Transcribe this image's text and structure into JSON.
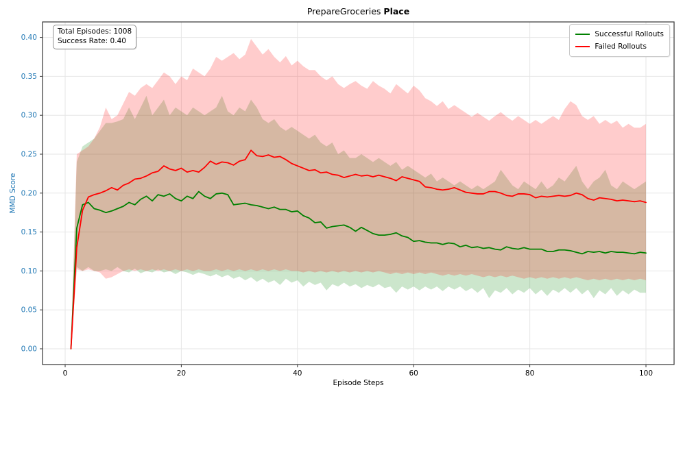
{
  "figure": {
    "title_regular": "PrepareGroceries",
    "title_bold": "Place",
    "xlabel": "Episode Steps",
    "ylabel": "MMD Score"
  },
  "stats_box": {
    "line1": "Total Episodes: 1008",
    "line2": "Success Rate: 0.40"
  },
  "colors": {
    "successful_line": "#008000",
    "failed_line": "#ff0000",
    "successful_band": "rgba(0,128,0,0.2)",
    "failed_band": "rgba(255,0,0,0.2)",
    "ytick_text": "#1f77b4",
    "xtick_text": "#000000",
    "grid": "#e6e6e6",
    "spine": "#333333"
  },
  "chart_data": {
    "type": "line",
    "title": "PrepareGroceries Place",
    "xlabel": "Episode Steps",
    "ylabel": "MMD Score",
    "grid": true,
    "legend_position": "upper right",
    "annotation": "Total Episodes: 1008\nSuccess Rate: 0.40",
    "xlim": [
      -4,
      105
    ],
    "ylim": [
      -0.022,
      0.42
    ],
    "xticks": [
      0,
      20,
      40,
      60,
      80,
      100
    ],
    "xtick_labels": [
      "0",
      "20",
      "40",
      "60",
      "80",
      "100"
    ],
    "yticks": [
      0.0,
      0.05,
      0.1,
      0.15,
      0.2,
      0.25,
      0.3,
      0.35,
      0.4
    ],
    "ytick_labels": [
      "0.00",
      "0.05",
      "0.10",
      "0.15",
      "0.20",
      "0.25",
      "0.30",
      "0.35",
      "0.40"
    ],
    "x": [
      1,
      2,
      3,
      4,
      5,
      6,
      7,
      8,
      9,
      10,
      11,
      12,
      13,
      14,
      15,
      16,
      17,
      18,
      19,
      20,
      21,
      22,
      23,
      24,
      25,
      26,
      27,
      28,
      29,
      30,
      31,
      32,
      33,
      34,
      35,
      36,
      37,
      38,
      39,
      40,
      41,
      42,
      43,
      44,
      45,
      46,
      47,
      48,
      49,
      50,
      51,
      52,
      53,
      54,
      55,
      56,
      57,
      58,
      59,
      60,
      61,
      62,
      63,
      64,
      65,
      66,
      67,
      68,
      69,
      70,
      71,
      72,
      73,
      74,
      75,
      76,
      77,
      78,
      79,
      80,
      81,
      82,
      83,
      84,
      85,
      86,
      87,
      88,
      89,
      90,
      91,
      92,
      93,
      94,
      95,
      96,
      97,
      98,
      99,
      100
    ],
    "series": [
      {
        "name": "Successful Rollouts",
        "color": "#008000",
        "band_color": "rgba(0,128,0,0.2)",
        "values": [
          0.0,
          0.155,
          0.185,
          0.188,
          0.18,
          0.178,
          0.175,
          0.177,
          0.18,
          0.183,
          0.188,
          0.185,
          0.192,
          0.196,
          0.19,
          0.198,
          0.196,
          0.199,
          0.193,
          0.19,
          0.196,
          0.193,
          0.202,
          0.196,
          0.193,
          0.199,
          0.2,
          0.198,
          0.185,
          0.186,
          0.187,
          0.185,
          0.184,
          0.182,
          0.18,
          0.182,
          0.179,
          0.179,
          0.176,
          0.177,
          0.171,
          0.168,
          0.162,
          0.163,
          0.155,
          0.157,
          0.158,
          0.159,
          0.156,
          0.151,
          0.156,
          0.152,
          0.148,
          0.146,
          0.146,
          0.147,
          0.149,
          0.145,
          0.143,
          0.138,
          0.139,
          0.137,
          0.136,
          0.136,
          0.134,
          0.136,
          0.135,
          0.131,
          0.133,
          0.13,
          0.131,
          0.129,
          0.13,
          0.128,
          0.127,
          0.131,
          0.129,
          0.128,
          0.13,
          0.128,
          0.128,
          0.128,
          0.125,
          0.125,
          0.127,
          0.127,
          0.126,
          0.124,
          0.122,
          0.125,
          0.124,
          0.125,
          0.123,
          0.125,
          0.124,
          0.124,
          0.123,
          0.122,
          0.124,
          0.123
        ],
        "band_upper": [
          0.0,
          0.24,
          0.26,
          0.265,
          0.27,
          0.28,
          0.29,
          0.29,
          0.292,
          0.295,
          0.31,
          0.295,
          0.31,
          0.325,
          0.3,
          0.31,
          0.32,
          0.3,
          0.31,
          0.305,
          0.3,
          0.31,
          0.305,
          0.3,
          0.305,
          0.31,
          0.325,
          0.305,
          0.3,
          0.31,
          0.305,
          0.32,
          0.31,
          0.295,
          0.29,
          0.295,
          0.285,
          0.28,
          0.285,
          0.28,
          0.275,
          0.27,
          0.275,
          0.265,
          0.26,
          0.265,
          0.25,
          0.255,
          0.245,
          0.245,
          0.25,
          0.245,
          0.24,
          0.245,
          0.24,
          0.235,
          0.24,
          0.23,
          0.235,
          0.23,
          0.225,
          0.22,
          0.225,
          0.215,
          0.22,
          0.215,
          0.21,
          0.215,
          0.21,
          0.205,
          0.21,
          0.205,
          0.21,
          0.215,
          0.23,
          0.22,
          0.21,
          0.205,
          0.215,
          0.21,
          0.205,
          0.215,
          0.205,
          0.21,
          0.22,
          0.215,
          0.225,
          0.235,
          0.215,
          0.205,
          0.215,
          0.22,
          0.23,
          0.21,
          0.205,
          0.215,
          0.21,
          0.205,
          0.21,
          0.215
        ],
        "band_lower": [
          0.0,
          0.105,
          0.1,
          0.105,
          0.1,
          0.1,
          0.102,
          0.1,
          0.105,
          0.1,
          0.098,
          0.103,
          0.097,
          0.1,
          0.098,
          0.102,
          0.098,
          0.1,
          0.096,
          0.1,
          0.098,
          0.095,
          0.098,
          0.096,
          0.093,
          0.096,
          0.092,
          0.095,
          0.09,
          0.093,
          0.088,
          0.092,
          0.086,
          0.09,
          0.085,
          0.088,
          0.082,
          0.09,
          0.085,
          0.088,
          0.08,
          0.086,
          0.082,
          0.085,
          0.075,
          0.083,
          0.08,
          0.085,
          0.08,
          0.083,
          0.078,
          0.082,
          0.079,
          0.083,
          0.078,
          0.08,
          0.072,
          0.08,
          0.076,
          0.08,
          0.075,
          0.08,
          0.076,
          0.08,
          0.074,
          0.08,
          0.076,
          0.08,
          0.074,
          0.078,
          0.072,
          0.078,
          0.065,
          0.075,
          0.072,
          0.078,
          0.07,
          0.076,
          0.072,
          0.078,
          0.07,
          0.076,
          0.068,
          0.076,
          0.072,
          0.078,
          0.072,
          0.078,
          0.07,
          0.076,
          0.065,
          0.075,
          0.07,
          0.078,
          0.068,
          0.075,
          0.07,
          0.076,
          0.072,
          0.072
        ]
      },
      {
        "name": "Failed Rollouts",
        "color": "#ff0000",
        "band_color": "rgba(255,0,0,0.2)",
        "values": [
          0.0,
          0.13,
          0.178,
          0.195,
          0.198,
          0.2,
          0.203,
          0.207,
          0.204,
          0.21,
          0.213,
          0.218,
          0.219,
          0.222,
          0.226,
          0.228,
          0.235,
          0.231,
          0.229,
          0.232,
          0.227,
          0.229,
          0.227,
          0.233,
          0.241,
          0.237,
          0.24,
          0.239,
          0.236,
          0.241,
          0.243,
          0.255,
          0.248,
          0.247,
          0.249,
          0.246,
          0.247,
          0.243,
          0.238,
          0.235,
          0.232,
          0.229,
          0.23,
          0.226,
          0.227,
          0.224,
          0.223,
          0.22,
          0.222,
          0.224,
          0.222,
          0.223,
          0.221,
          0.223,
          0.221,
          0.219,
          0.216,
          0.221,
          0.219,
          0.217,
          0.215,
          0.208,
          0.207,
          0.205,
          0.204,
          0.205,
          0.207,
          0.204,
          0.201,
          0.2,
          0.199,
          0.199,
          0.202,
          0.202,
          0.2,
          0.197,
          0.196,
          0.199,
          0.199,
          0.198,
          0.194,
          0.196,
          0.195,
          0.196,
          0.197,
          0.196,
          0.197,
          0.2,
          0.198,
          0.193,
          0.191,
          0.194,
          0.193,
          0.192,
          0.19,
          0.191,
          0.19,
          0.189,
          0.19,
          0.188
        ],
        "band_upper": [
          0.0,
          0.25,
          0.255,
          0.26,
          0.27,
          0.285,
          0.31,
          0.295,
          0.3,
          0.315,
          0.33,
          0.325,
          0.335,
          0.34,
          0.335,
          0.345,
          0.355,
          0.35,
          0.34,
          0.35,
          0.345,
          0.36,
          0.355,
          0.35,
          0.36,
          0.375,
          0.37,
          0.375,
          0.38,
          0.372,
          0.378,
          0.398,
          0.388,
          0.378,
          0.385,
          0.375,
          0.368,
          0.376,
          0.364,
          0.37,
          0.363,
          0.358,
          0.358,
          0.35,
          0.345,
          0.35,
          0.34,
          0.335,
          0.34,
          0.344,
          0.338,
          0.334,
          0.344,
          0.338,
          0.334,
          0.328,
          0.34,
          0.334,
          0.328,
          0.338,
          0.332,
          0.322,
          0.318,
          0.312,
          0.318,
          0.308,
          0.313,
          0.308,
          0.303,
          0.298,
          0.303,
          0.298,
          0.293,
          0.299,
          0.304,
          0.298,
          0.293,
          0.299,
          0.294,
          0.289,
          0.294,
          0.289,
          0.294,
          0.299,
          0.294,
          0.308,
          0.318,
          0.313,
          0.299,
          0.294,
          0.299,
          0.289,
          0.294,
          0.289,
          0.293,
          0.284,
          0.289,
          0.284,
          0.284,
          0.289
        ],
        "band_lower": [
          0.0,
          0.102,
          0.1,
          0.102,
          0.1,
          0.098,
          0.09,
          0.092,
          0.096,
          0.1,
          0.102,
          0.1,
          0.102,
          0.1,
          0.102,
          0.1,
          0.102,
          0.1,
          0.102,
          0.1,
          0.102,
          0.1,
          0.102,
          0.1,
          0.1,
          0.102,
          0.1,
          0.102,
          0.1,
          0.102,
          0.1,
          0.102,
          0.1,
          0.102,
          0.1,
          0.102,
          0.1,
          0.102,
          0.1,
          0.1,
          0.098,
          0.1,
          0.098,
          0.1,
          0.098,
          0.1,
          0.098,
          0.1,
          0.098,
          0.1,
          0.098,
          0.1,
          0.098,
          0.1,
          0.098,
          0.096,
          0.098,
          0.096,
          0.098,
          0.096,
          0.098,
          0.096,
          0.098,
          0.096,
          0.094,
          0.096,
          0.094,
          0.096,
          0.094,
          0.096,
          0.094,
          0.092,
          0.094,
          0.092,
          0.094,
          0.092,
          0.094,
          0.092,
          0.09,
          0.092,
          0.09,
          0.092,
          0.09,
          0.092,
          0.09,
          0.092,
          0.09,
          0.092,
          0.09,
          0.088,
          0.09,
          0.088,
          0.09,
          0.088,
          0.09,
          0.088,
          0.09,
          0.088,
          0.09,
          0.088
        ]
      }
    ]
  }
}
